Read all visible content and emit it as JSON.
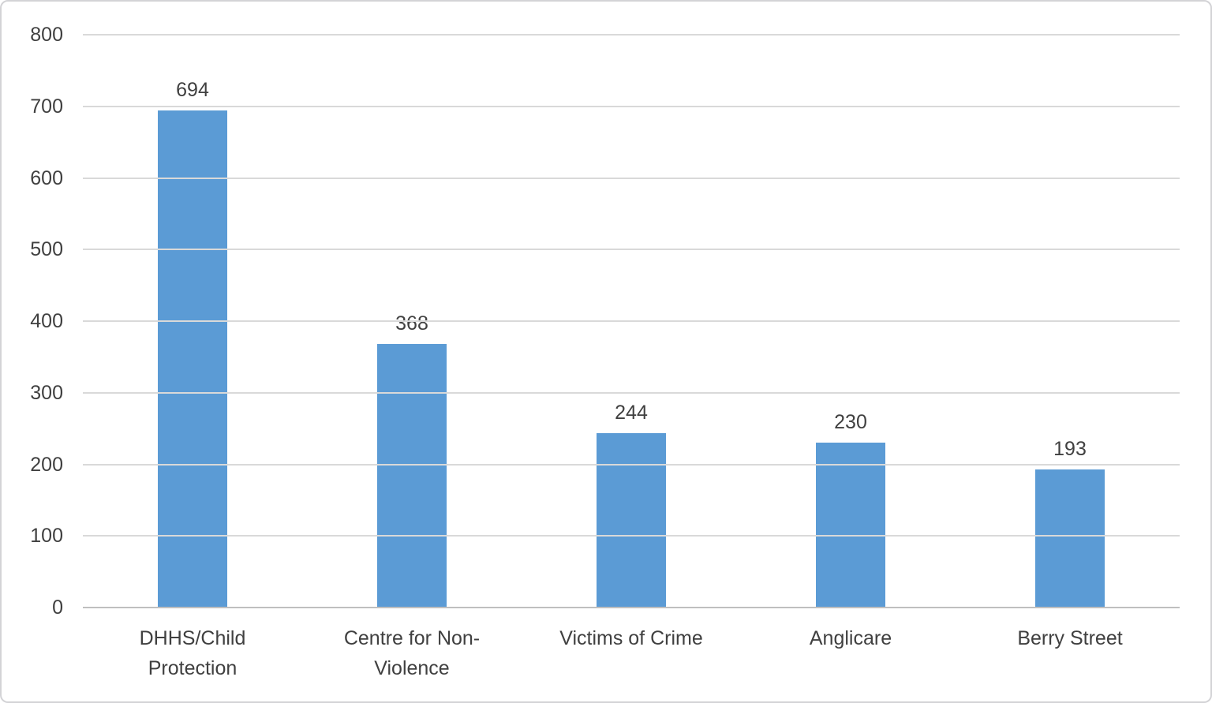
{
  "chart_data": {
    "type": "bar",
    "categories": [
      "DHHS/Child Protection",
      "Centre for Non-Violence",
      "Victims of Crime",
      "Anglicare",
      "Berry Street"
    ],
    "category_lines": [
      [
        "DHHS/Child",
        "Protection"
      ],
      [
        "Centre for Non-",
        "Violence"
      ],
      [
        "Victims of Crime"
      ],
      [
        "Anglicare"
      ],
      [
        "Berry Street"
      ]
    ],
    "values": [
      694,
      368,
      244,
      230,
      193
    ],
    "data_labels": [
      "694",
      "368",
      "244",
      "230",
      "193"
    ],
    "title": "",
    "xlabel": "",
    "ylabel": "",
    "ylim": [
      0,
      800
    ],
    "yticks": [
      0,
      100,
      200,
      300,
      400,
      500,
      600,
      700,
      800
    ],
    "ytick_labels": [
      "0",
      "100",
      "200",
      "300",
      "400",
      "500",
      "600",
      "700",
      "800"
    ],
    "grid": true,
    "legend": false,
    "bar_color": "#5B9BD5",
    "gridline_color": "#D9D9D9",
    "axis_line_color": "#BFBFBF",
    "text_color": "#404040"
  }
}
